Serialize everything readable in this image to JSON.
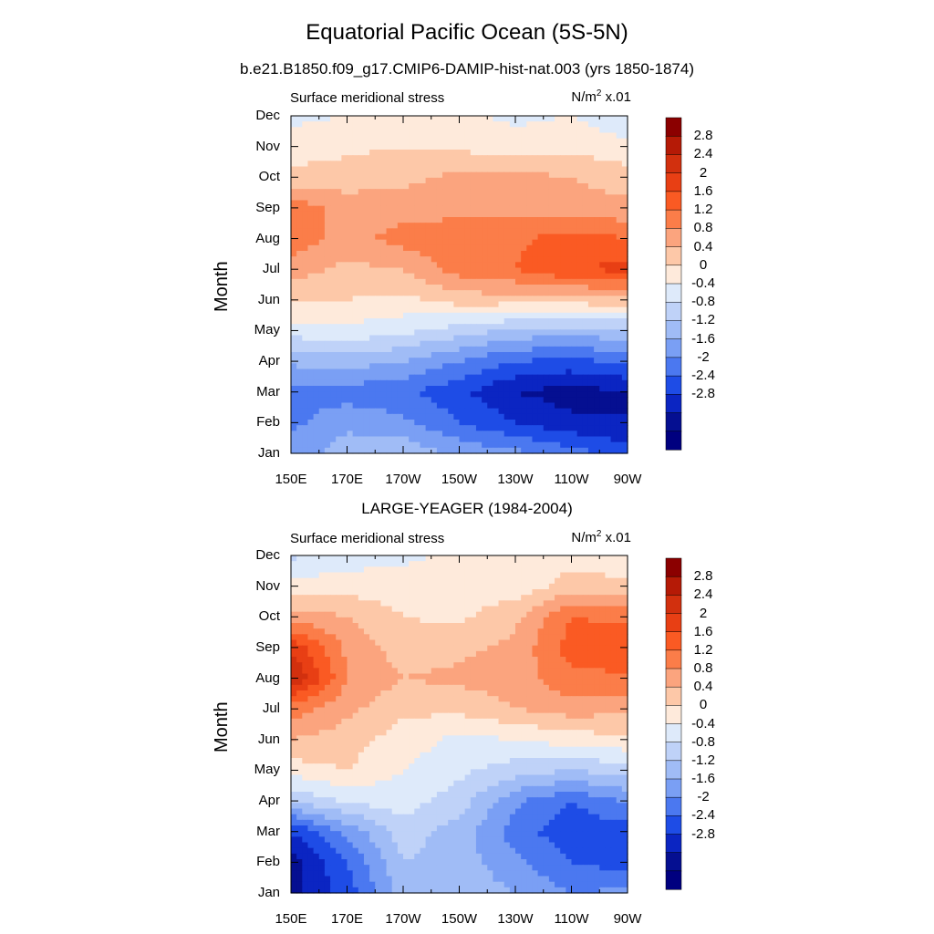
{
  "title": "Equatorial Pacific Ocean (5S-5N)",
  "subtitle": "b.e21.B1850.f09_g17.CMIP6-DAMIP-hist-nat.003 (yrs 1850-1874)",
  "units_label": "N/m",
  "units_sup": "2",
  "units_scale": " x.01",
  "colorbar": {
    "levels": [
      "2.8",
      "2.4",
      "2",
      "1.6",
      "1.2",
      "0.8",
      "0.4",
      "0",
      "-0.4",
      "-0.8",
      "-1.2",
      "-1.6",
      "-2",
      "-2.4",
      "-2.8"
    ],
    "colors": [
      "#b51a06",
      "#d2300e",
      "#e83f14",
      "#fa5a23",
      "#fb7d49",
      "#fba47e",
      "#fdc8a8",
      "#feeadb",
      "#deeafa",
      "#bfd2f8",
      "#a0bcf6",
      "#7a9ff4",
      "#4b78f0",
      "#1e4ce6",
      "#0b25c2",
      "#050f91"
    ],
    "top_color": "#8b0000",
    "bottom_color": "#00007f"
  },
  "chart_data": [
    {
      "type": "heatmap",
      "panel_title": "",
      "left_string": "Surface meridional stress",
      "ylabel": "Month",
      "x_tick_labels": [
        "150E",
        "170E",
        "170W",
        "150W",
        "130W",
        "110W",
        "90W"
      ],
      "x_tick_values": [
        150,
        170,
        190,
        210,
        230,
        250,
        270
      ],
      "y_tick_labels": [
        "Jan",
        "Feb",
        "Mar",
        "Apr",
        "May",
        "Jun",
        "Jul",
        "Aug",
        "Sep",
        "Oct",
        "Nov",
        "Dec"
      ],
      "xlim": [
        150,
        270
      ],
      "ylim": [
        1,
        12
      ],
      "z_grid_x": [
        150,
        170,
        190,
        210,
        230,
        250,
        270
      ],
      "z_grid_y": [
        "Jan",
        "Feb",
        "Mar",
        "Apr",
        "May",
        "Jun",
        "Jul",
        "Aug",
        "Sep",
        "Oct",
        "Nov",
        "Dec"
      ],
      "z": [
        [
          -1.4,
          -1.0,
          -0.9,
          -1.3,
          -1.5,
          -1.8,
          -2.2
        ],
        [
          -1.7,
          -1.3,
          -1.5,
          -2.0,
          -2.4,
          -2.7,
          -2.8
        ],
        [
          -1.8,
          -1.8,
          -1.9,
          -2.3,
          -2.8,
          -3.0,
          -2.8
        ],
        [
          -1.1,
          -1.0,
          -1.2,
          -1.6,
          -2.0,
          -2.1,
          -1.9
        ],
        [
          -0.2,
          -0.1,
          -0.3,
          -0.6,
          -0.9,
          -1.0,
          -0.9
        ],
        [
          0.5,
          0.4,
          0.3,
          0.6,
          0.6,
          0.6,
          0.7
        ],
        [
          1.0,
          0.7,
          0.8,
          1.4,
          1.6,
          2.0,
          2.1
        ],
        [
          1.5,
          1.0,
          1.4,
          1.4,
          1.5,
          1.8,
          1.6
        ],
        [
          1.5,
          1.0,
          1.0,
          1.1,
          1.1,
          1.0,
          0.9
        ],
        [
          0.5,
          0.6,
          0.7,
          0.9,
          0.9,
          0.8,
          0.6
        ],
        [
          0.2,
          0.3,
          0.4,
          0.3,
          0.2,
          0.3,
          0.1
        ],
        [
          -0.1,
          0.0,
          0.0,
          0.1,
          -0.1,
          0.0,
          -0.3
        ]
      ]
    },
    {
      "type": "heatmap",
      "panel_title": "LARGE-YEAGER (1984-2004)",
      "left_string": "Surface meridional stress",
      "ylabel": "Month",
      "x_tick_labels": [
        "150E",
        "170E",
        "170W",
        "150W",
        "130W",
        "110W",
        "90W"
      ],
      "x_tick_values": [
        150,
        170,
        190,
        210,
        230,
        250,
        270
      ],
      "y_tick_labels": [
        "Jan",
        "Feb",
        "Mar",
        "Apr",
        "May",
        "Jun",
        "Jul",
        "Aug",
        "Sep",
        "Oct",
        "Nov",
        "Dec"
      ],
      "xlim": [
        150,
        270
      ],
      "ylim": [
        1,
        12
      ],
      "z_grid_x": [
        150,
        170,
        190,
        210,
        230,
        250,
        270
      ],
      "z_grid_y": [
        "Jan",
        "Feb",
        "Mar",
        "Apr",
        "May",
        "Jun",
        "Jul",
        "Aug",
        "Sep",
        "Oct",
        "Nov",
        "Dec"
      ],
      "z": [
        [
          -3.0,
          -2.2,
          -1.0,
          -0.9,
          -1.2,
          -1.6,
          -1.5
        ],
        [
          -3.0,
          -2.0,
          -0.8,
          -1.0,
          -1.5,
          -2.0,
          -2.2
        ],
        [
          -2.4,
          -1.5,
          -0.6,
          -1.0,
          -1.8,
          -2.3,
          -2.2
        ],
        [
          -0.8,
          -0.3,
          -0.2,
          -0.6,
          -1.5,
          -2.0,
          -1.5
        ],
        [
          0.2,
          0.4,
          0.0,
          -0.3,
          -0.6,
          -0.8,
          -0.6
        ],
        [
          0.8,
          0.6,
          0.2,
          -0.1,
          0.0,
          0.2,
          0.3
        ],
        [
          1.4,
          0.9,
          0.5,
          0.5,
          0.8,
          1.0,
          0.9
        ],
        [
          2.9,
          1.2,
          0.8,
          0.9,
          1.0,
          1.5,
          1.5
        ],
        [
          2.3,
          1.1,
          0.6,
          0.7,
          0.9,
          1.8,
          2.0
        ],
        [
          1.0,
          0.8,
          0.4,
          0.3,
          0.7,
          1.6,
          1.5
        ],
        [
          0.2,
          0.2,
          0.2,
          0.3,
          0.1,
          0.6,
          0.5
        ],
        [
          -0.5,
          -0.2,
          -0.1,
          0.1,
          0.2,
          0.2,
          0.1
        ]
      ]
    }
  ]
}
